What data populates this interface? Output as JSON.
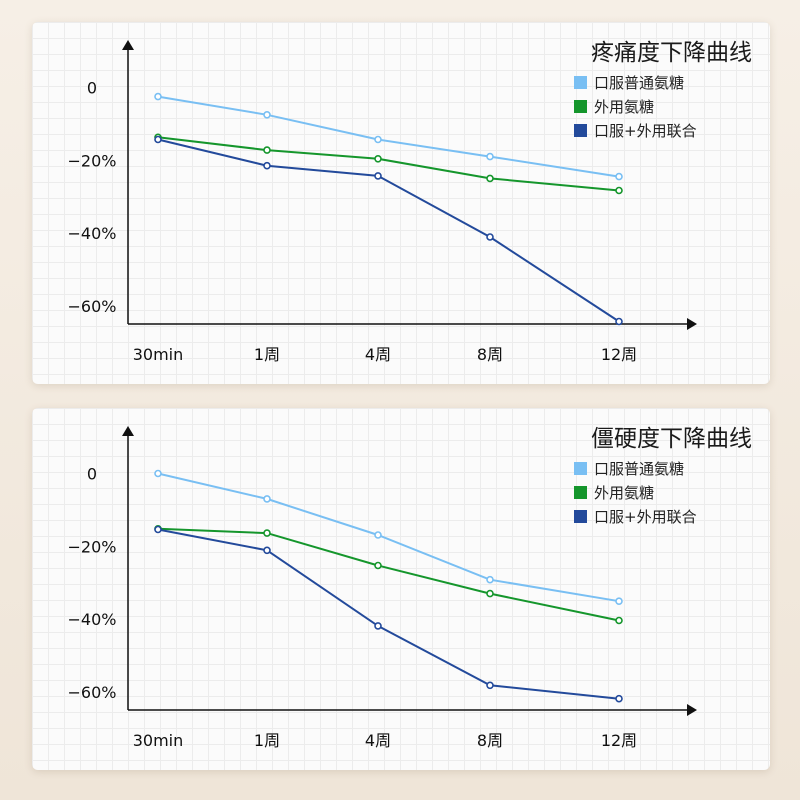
{
  "chart_data": [
    {
      "type": "line",
      "title": "疼痛度下降曲线",
      "categories": [
        "30min",
        "1周",
        "4周",
        "8周",
        "12周"
      ],
      "yticks": [
        "0",
        "−20%",
        "−40%",
        "−60%"
      ],
      "ylim": [
        -0.65,
        0.07
      ],
      "grid": true,
      "legend": "top-right",
      "series": [
        {
          "name": "口服普通氨糖",
          "color": "#79bff3",
          "values": [
            -0.025,
            -0.075,
            -0.143,
            -0.19,
            -0.245
          ]
        },
        {
          "name": "外用氨糖",
          "color": "#15962c",
          "values": [
            -0.137,
            -0.172,
            -0.196,
            -0.25,
            -0.283
          ]
        },
        {
          "name": "口服+外用联合",
          "color": "#234a9b",
          "values": [
            -0.143,
            -0.215,
            -0.243,
            -0.411,
            -0.643
          ]
        }
      ]
    },
    {
      "type": "line",
      "title": "僵硬度下降曲线",
      "categories": [
        "30min",
        "1周",
        "4周",
        "8周",
        "12周"
      ],
      "yticks": [
        "0",
        "−20%",
        "−40%",
        "−60%"
      ],
      "ylim": [
        -0.65,
        0.07
      ],
      "grid": true,
      "legend": "top-right",
      "series": [
        {
          "name": "口服普通氨糖",
          "color": "#79bff3",
          "values": [
            0.0,
            -0.07,
            -0.169,
            -0.292,
            -0.351
          ]
        },
        {
          "name": "外用氨糖",
          "color": "#15962c",
          "values": [
            -0.152,
            -0.164,
            -0.253,
            -0.33,
            -0.404
          ]
        },
        {
          "name": "口服+外用联合",
          "color": "#234a9b",
          "values": [
            -0.154,
            -0.211,
            -0.419,
            -0.582,
            -0.619
          ]
        }
      ]
    }
  ]
}
